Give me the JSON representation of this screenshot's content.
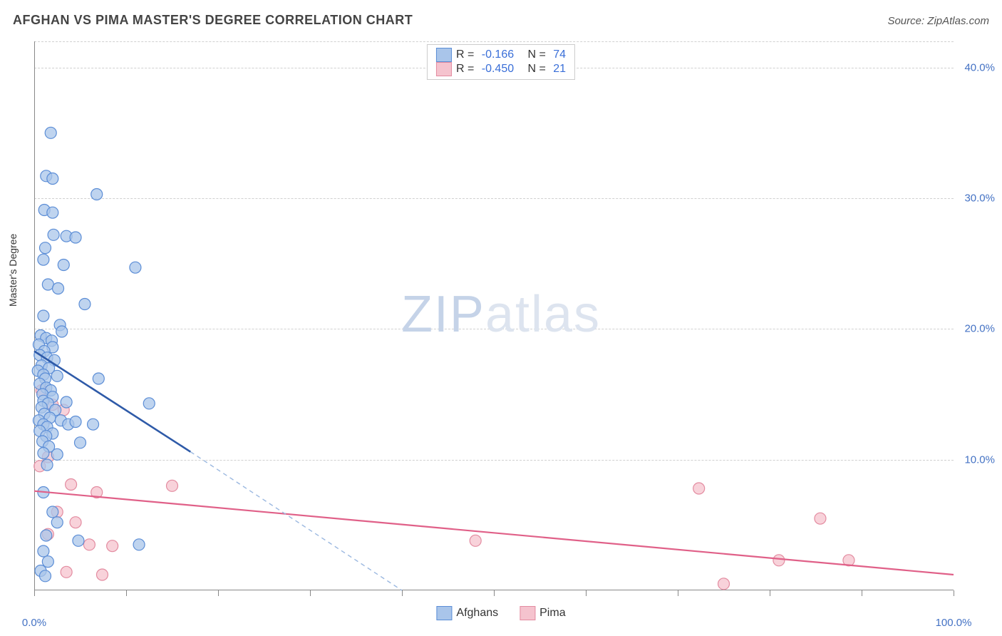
{
  "header": {
    "title": "AFGHAN VS PIMA MASTER'S DEGREE CORRELATION CHART",
    "source": "Source: ZipAtlas.com"
  },
  "chart": {
    "type": "scatter",
    "ylabel": "Master's Degree",
    "xlim": [
      0,
      100
    ],
    "ylim": [
      0,
      42
    ],
    "yticks": [
      {
        "value": 10,
        "label": "10.0%"
      },
      {
        "value": 20,
        "label": "20.0%"
      },
      {
        "value": 30,
        "label": "30.0%"
      },
      {
        "value": 40,
        "label": "40.0%"
      }
    ],
    "xticks": [
      {
        "value": 0,
        "label": "0.0%"
      },
      {
        "value": 100,
        "label": "100.0%"
      }
    ],
    "xtick_marks": [
      0,
      10,
      20,
      30,
      40,
      50,
      60,
      70,
      80,
      90,
      100
    ],
    "gridlines_y": [
      10,
      20,
      30,
      40,
      42
    ],
    "background_color": "#ffffff",
    "grid_color": "#d0d0d0",
    "axis_color": "#888888",
    "marker_radius": 8,
    "marker_stroke_width": 1.2,
    "series": {
      "afghans": {
        "label": "Afghans",
        "fill": "#a9c5ea",
        "stroke": "#5b8dd6",
        "line_color": "#2e5aa8",
        "trend_solid": {
          "x1": 0,
          "y1": 18.3,
          "x2": 17,
          "y2": 10.6
        },
        "trend_dashed": {
          "x1": 17,
          "y1": 10.6,
          "x2": 40,
          "y2": 0
        },
        "R": "-0.166",
        "N": "74",
        "points": [
          [
            1.8,
            35.0
          ],
          [
            1.3,
            31.7
          ],
          [
            2.0,
            31.5
          ],
          [
            6.8,
            30.3
          ],
          [
            1.1,
            29.1
          ],
          [
            2.0,
            28.9
          ],
          [
            2.1,
            27.2
          ],
          [
            3.5,
            27.1
          ],
          [
            4.5,
            27.0
          ],
          [
            1.2,
            26.2
          ],
          [
            1.0,
            25.3
          ],
          [
            3.2,
            24.9
          ],
          [
            11.0,
            24.7
          ],
          [
            1.5,
            23.4
          ],
          [
            2.6,
            23.1
          ],
          [
            5.5,
            21.9
          ],
          [
            1.0,
            21.0
          ],
          [
            2.8,
            20.3
          ],
          [
            3.0,
            19.8
          ],
          [
            0.7,
            19.5
          ],
          [
            1.3,
            19.3
          ],
          [
            1.9,
            19.1
          ],
          [
            0.5,
            18.8
          ],
          [
            2.0,
            18.6
          ],
          [
            1.1,
            18.3
          ],
          [
            0.6,
            18.0
          ],
          [
            1.4,
            17.8
          ],
          [
            2.2,
            17.6
          ],
          [
            0.8,
            17.2
          ],
          [
            1.6,
            17.0
          ],
          [
            0.4,
            16.8
          ],
          [
            1.0,
            16.5
          ],
          [
            2.5,
            16.4
          ],
          [
            1.2,
            16.2
          ],
          [
            7.0,
            16.2
          ],
          [
            0.6,
            15.8
          ],
          [
            1.3,
            15.5
          ],
          [
            1.8,
            15.3
          ],
          [
            0.9,
            15.0
          ],
          [
            2.0,
            14.8
          ],
          [
            1.0,
            14.5
          ],
          [
            1.5,
            14.3
          ],
          [
            12.5,
            14.3
          ],
          [
            3.5,
            14.4
          ],
          [
            0.8,
            14.0
          ],
          [
            2.3,
            13.8
          ],
          [
            1.1,
            13.5
          ],
          [
            1.7,
            13.2
          ],
          [
            0.5,
            13.0
          ],
          [
            2.9,
            13.0
          ],
          [
            1.0,
            12.7
          ],
          [
            1.4,
            12.5
          ],
          [
            3.7,
            12.7
          ],
          [
            4.5,
            12.9
          ],
          [
            6.4,
            12.7
          ],
          [
            0.6,
            12.2
          ],
          [
            2.0,
            12.0
          ],
          [
            1.3,
            11.8
          ],
          [
            5.0,
            11.3
          ],
          [
            0.9,
            11.4
          ],
          [
            1.6,
            11.0
          ],
          [
            1.0,
            10.5
          ],
          [
            2.5,
            10.4
          ],
          [
            1.4,
            9.6
          ],
          [
            1.0,
            7.5
          ],
          [
            2.0,
            6.0
          ],
          [
            2.5,
            5.2
          ],
          [
            1.3,
            4.2
          ],
          [
            4.8,
            3.8
          ],
          [
            11.4,
            3.5
          ],
          [
            1.0,
            3.0
          ],
          [
            1.5,
            2.2
          ],
          [
            0.7,
            1.5
          ],
          [
            1.2,
            1.1
          ]
        ]
      },
      "pima": {
        "label": "Pima",
        "fill": "#f5c3ce",
        "stroke": "#e38ba0",
        "line_color": "#e06088",
        "trend_solid": {
          "x1": 0,
          "y1": 7.6,
          "x2": 100,
          "y2": 1.2
        },
        "R": "-0.450",
        "N": "21",
        "points": [
          [
            0.8,
            15.3
          ],
          [
            2.0,
            14.2
          ],
          [
            3.2,
            13.8
          ],
          [
            1.5,
            10.2
          ],
          [
            0.6,
            9.5
          ],
          [
            4.0,
            8.1
          ],
          [
            15.0,
            8.0
          ],
          [
            6.8,
            7.5
          ],
          [
            72.3,
            7.8
          ],
          [
            2.5,
            6.0
          ],
          [
            4.5,
            5.2
          ],
          [
            85.5,
            5.5
          ],
          [
            1.5,
            4.3
          ],
          [
            6.0,
            3.5
          ],
          [
            8.5,
            3.4
          ],
          [
            48.0,
            3.8
          ],
          [
            81.0,
            2.3
          ],
          [
            88.6,
            2.3
          ],
          [
            3.5,
            1.4
          ],
          [
            7.4,
            1.2
          ],
          [
            75.0,
            0.5
          ]
        ]
      }
    },
    "legend_top": [
      {
        "swatch_fill": "#a9c5ea",
        "swatch_stroke": "#5b8dd6",
        "R": "-0.166",
        "N": "74"
      },
      {
        "swatch_fill": "#f5c3ce",
        "swatch_stroke": "#e38ba0",
        "R": "-0.450",
        "N": "21"
      }
    ],
    "watermark": {
      "zip": "ZIP",
      "atlas": "atlas"
    }
  }
}
